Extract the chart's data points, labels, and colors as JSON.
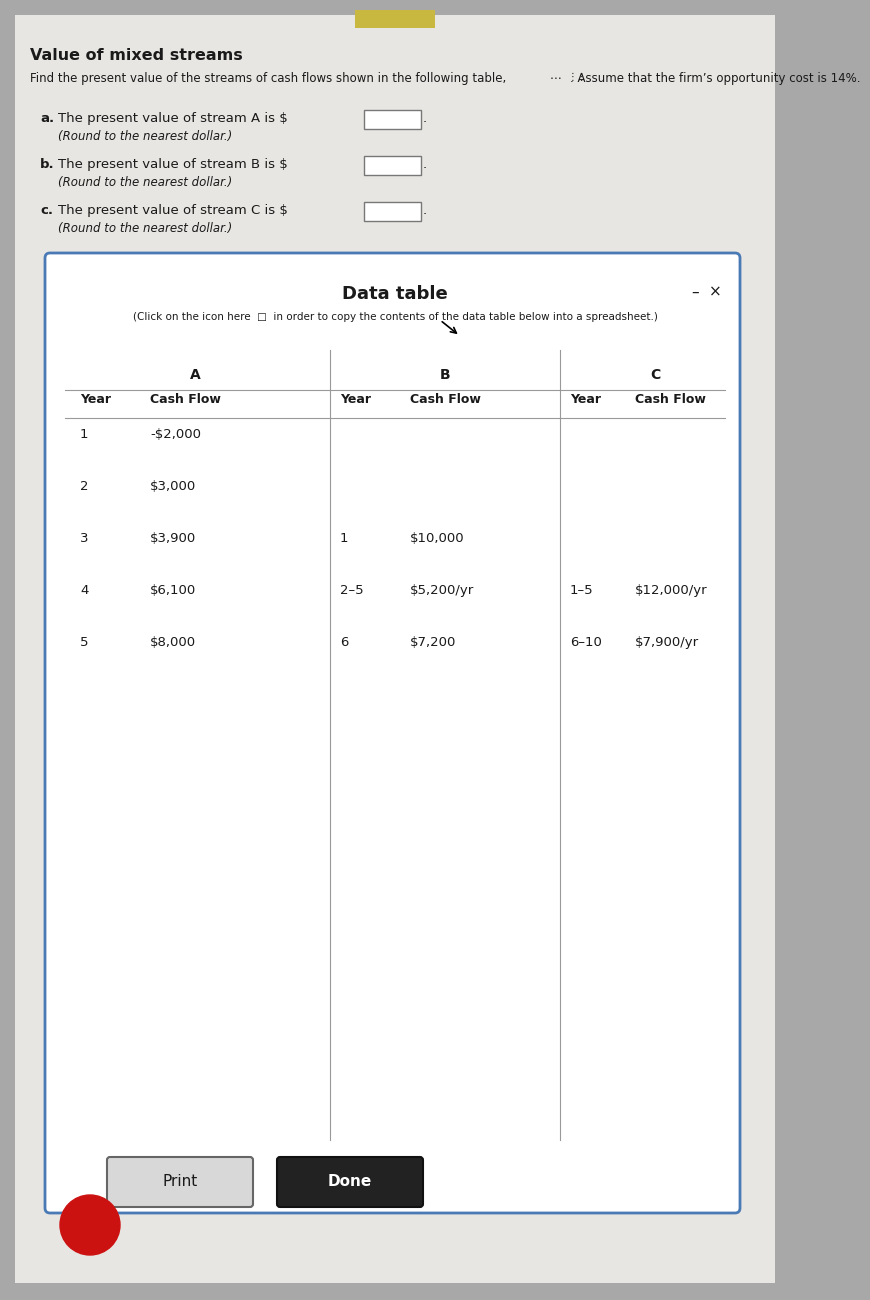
{
  "title": "Value of mixed streams",
  "subtitle1": "Find the present value of the streams of cash flows shown in the following table,",
  "subtitle2": ". Assume that the firm’s opportunity cost is 14%.",
  "ellipsis": "⋯",
  "part_a_text": "a.   The present value of stream A is $",
  "part_a_round": "(Round to the nearest dollar.)",
  "part_b_text": "b.   The present value of stream B is $",
  "part_b_round": "(Round to the nearest dollar.)",
  "part_c_text": "c.   The present value of stream C is $",
  "part_c_round": "(Round to the nearest dollar.)",
  "data_table_title": "Data table",
  "data_table_sub": "(Click on the icon here  □  in order to copy the contents of the data table below into a spreadsheet.)",
  "stream_a_header": "A",
  "stream_a_rows": [
    [
      "1",
      "-$2,000"
    ],
    [
      "2",
      "$3,000"
    ],
    [
      "3",
      "$3,900"
    ],
    [
      "4",
      "$6,100"
    ],
    [
      "5",
      "$8,000"
    ]
  ],
  "stream_b_header": "B",
  "stream_b_rows": [
    [
      "1",
      "$10,000"
    ],
    [
      "2–5",
      "$5,200/yr"
    ],
    [
      "6",
      "$7,200"
    ]
  ],
  "stream_c_header": "C",
  "stream_c_rows": [
    [
      "1–5",
      "$12,000/yr"
    ],
    [
      "6–10",
      "$7,900/yr"
    ]
  ],
  "btn_print": "Print",
  "btn_done": "Done",
  "bg_outer": "#a8a8a8",
  "bg_panel": "#e8e6e2",
  "bg_white": "#ffffff",
  "border_color": "#4a7ab5",
  "text_color": "#1a1a1a",
  "red_circle": "#cc1111",
  "tab_color": "#c8b840"
}
